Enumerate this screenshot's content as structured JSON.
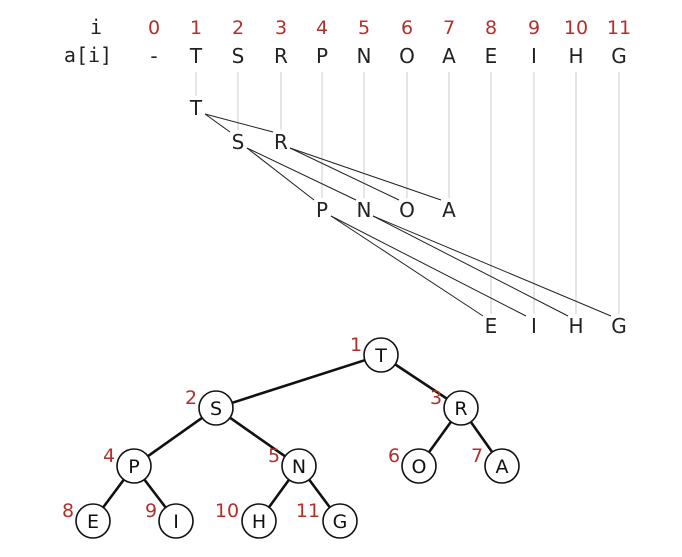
{
  "array": {
    "index_label": "i",
    "value_label": "a[i]",
    "indices": [
      "0",
      "1",
      "2",
      "3",
      "4",
      "5",
      "6",
      "7",
      "8",
      "9",
      "10",
      "11"
    ],
    "values": [
      "-",
      "T",
      "S",
      "R",
      "P",
      "N",
      "O",
      "A",
      "E",
      "I",
      "H",
      "G"
    ]
  },
  "level_rows": [
    {
      "name": "level-1",
      "keys": [
        "T"
      ]
    },
    {
      "name": "level-2",
      "keys": [
        "S",
        "R"
      ]
    },
    {
      "name": "level-3",
      "keys": [
        "P",
        "N",
        "O",
        "A"
      ]
    },
    {
      "name": "level-4",
      "keys": [
        "E",
        "I",
        "H",
        "G"
      ]
    }
  ],
  "tree": {
    "nodes": [
      {
        "index": "1",
        "key": "T"
      },
      {
        "index": "2",
        "key": "S"
      },
      {
        "index": "3",
        "key": "R"
      },
      {
        "index": "4",
        "key": "P"
      },
      {
        "index": "5",
        "key": "N"
      },
      {
        "index": "6",
        "key": "O"
      },
      {
        "index": "7",
        "key": "A"
      },
      {
        "index": "8",
        "key": "E"
      },
      {
        "index": "9",
        "key": "I"
      },
      {
        "index": "10",
        "key": "H"
      },
      {
        "index": "11",
        "key": "G"
      }
    ],
    "edges": [
      [
        1,
        2
      ],
      [
        1,
        3
      ],
      [
        2,
        4
      ],
      [
        2,
        5
      ],
      [
        3,
        6
      ],
      [
        3,
        7
      ],
      [
        4,
        8
      ],
      [
        4,
        9
      ],
      [
        5,
        10
      ],
      [
        5,
        11
      ]
    ]
  },
  "colors": {
    "index_red": "#b3302a",
    "text": "#222222",
    "guide": "#cccccc"
  }
}
